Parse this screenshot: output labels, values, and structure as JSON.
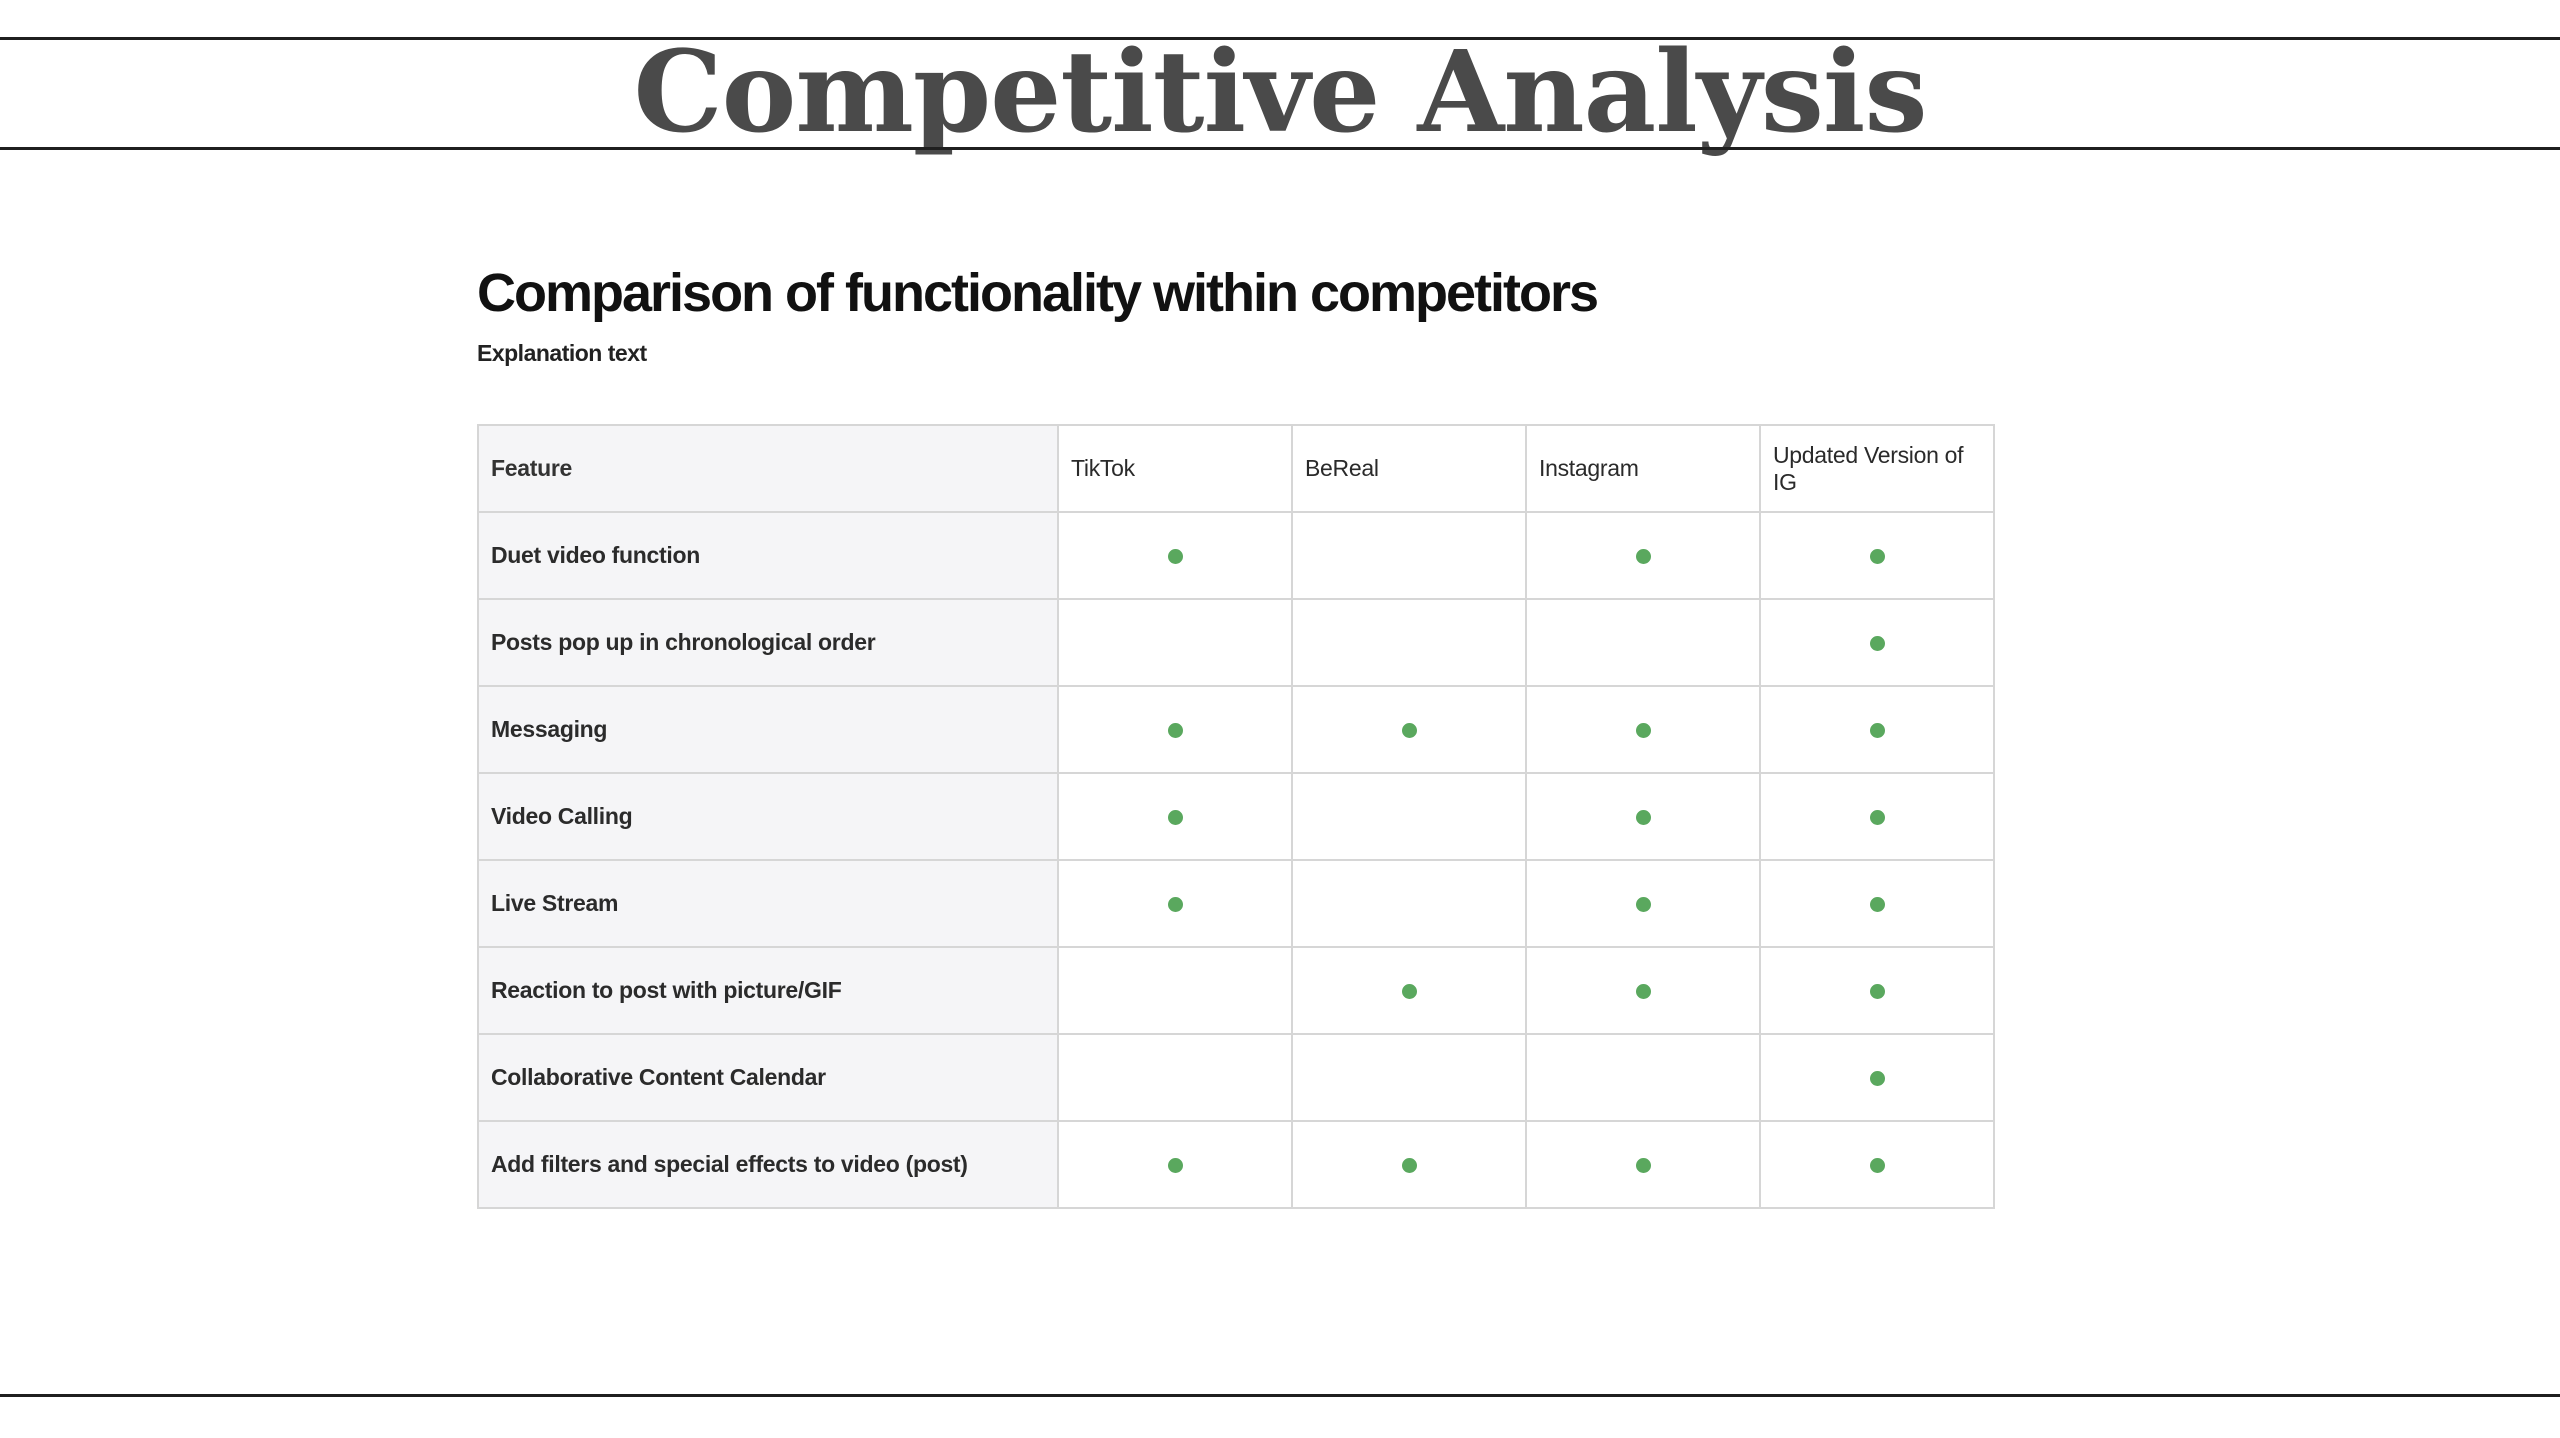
{
  "slide": {
    "title": "Competitive Analysis"
  },
  "panel": {
    "heading": "Comparison of functionality within competitors",
    "subtext": "Explanation text"
  },
  "table": {
    "columns": [
      "Feature",
      "TikTok",
      "BeReal",
      "Instagram",
      "Updated Version of IG"
    ],
    "rows": [
      {
        "feature": "Duet video function",
        "marks": [
          true,
          false,
          true,
          true
        ]
      },
      {
        "feature": "Posts pop up in chronological order",
        "marks": [
          false,
          false,
          false,
          true
        ]
      },
      {
        "feature": "Messaging",
        "marks": [
          true,
          true,
          true,
          true
        ]
      },
      {
        "feature": "Video Calling",
        "marks": [
          true,
          false,
          true,
          true
        ]
      },
      {
        "feature": "Live Stream",
        "marks": [
          true,
          false,
          true,
          true
        ]
      },
      {
        "feature": "Reaction to post with picture/GIF",
        "marks": [
          false,
          true,
          true,
          true
        ]
      },
      {
        "feature": "Collaborative Content Calendar",
        "marks": [
          false,
          false,
          false,
          true
        ]
      },
      {
        "feature": "Add filters and special effects to video (post)",
        "marks": [
          true,
          true,
          true,
          true
        ]
      }
    ],
    "check_color": "#5aa85e"
  }
}
